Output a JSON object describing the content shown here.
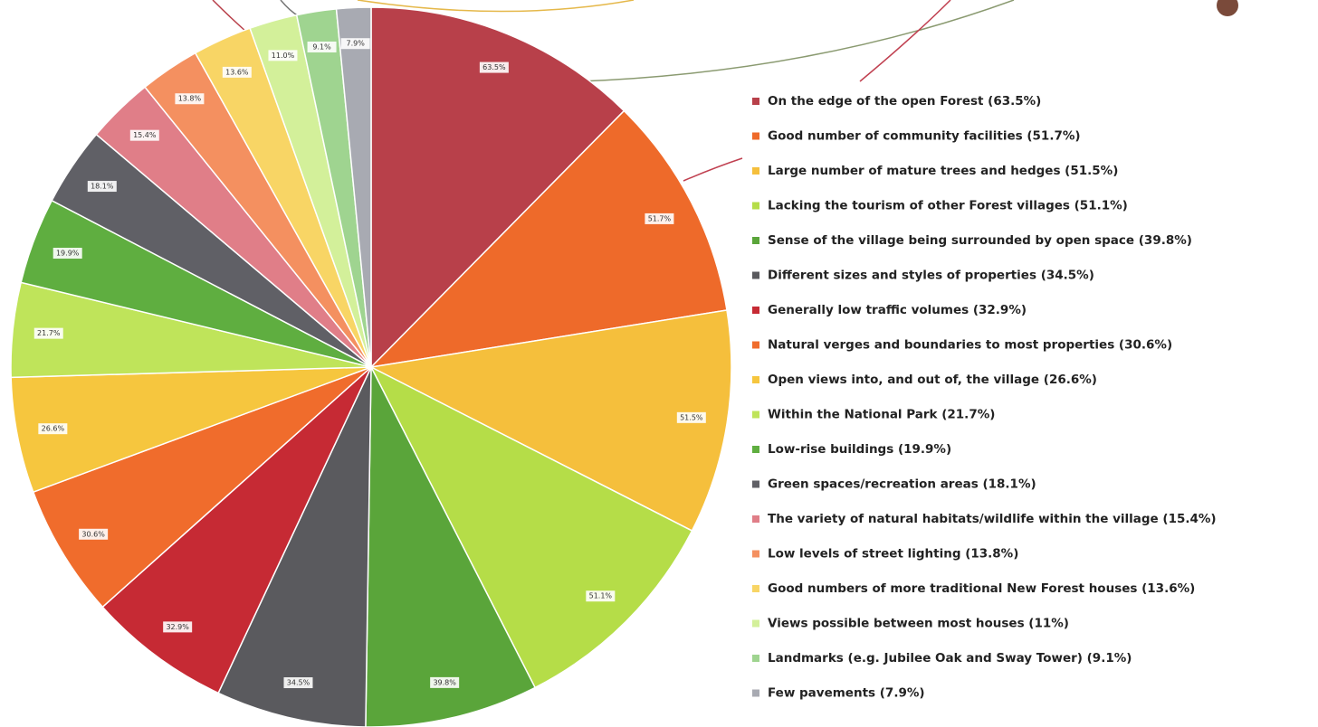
{
  "chart_data": {
    "type": "pie",
    "categories": [
      "On the edge of the open Forest (63.5%)",
      "Good number of community facilities (51.7%)",
      "Large number of mature trees and hedges (51.5%)",
      "Lacking the tourism of other Forest villages (51.1%)",
      "Sense of the village being surrounded by open space (39.8%)",
      "Different sizes and styles of properties (34.5%)",
      "Generally low traffic volumes (32.9%)",
      "Natural verges and boundaries to most properties (30.6%)",
      "Open views into, and out of, the village (26.6%)",
      "Within the National Park (21.7%)",
      "Low-rise buildings (19.9%)",
      "Green spaces/recreation areas (18.1%)",
      "The variety of natural habitats/wildlife within the village (15.4%)",
      "Low levels of street lighting (13.8%)",
      "Good numbers of more traditional New Forest houses (13.6%)",
      "Views possible between most houses (11%)",
      "Landmarks (e.g. Jubilee Oak and Sway Tower) (9.1%)",
      "Few pavements (7.9%)"
    ],
    "values": [
      63.5,
      51.7,
      51.5,
      51.1,
      39.8,
      34.5,
      32.9,
      30.6,
      26.6,
      21.7,
      19.9,
      18.1,
      15.4,
      13.8,
      13.6,
      11,
      9.1,
      7.9
    ],
    "value_labels": [
      "63.5%",
      "51.7%",
      "51.5%",
      "51.1%",
      "39.8%",
      "34.5%",
      "32.9%",
      "30.6%",
      "26.6%",
      "21.7%",
      "19.9%",
      "18.1%",
      "15.4%",
      "13.8%",
      "13.6%",
      "11.0%",
      "9.1%",
      "7.9%"
    ],
    "colors": [
      "#b8404a",
      "#ee6a2a",
      "#f5bf3c",
      "#b5dd48",
      "#5aa53a",
      "#5a5a5e",
      "#c62a34",
      "#f06c2c",
      "#f6c63e",
      "#bfe45a",
      "#5fae40",
      "#606066",
      "#e07e88",
      "#f49060",
      "#f8d565",
      "#d3f09a",
      "#9fd490",
      "#a8aab2"
    ],
    "legend": "right"
  }
}
